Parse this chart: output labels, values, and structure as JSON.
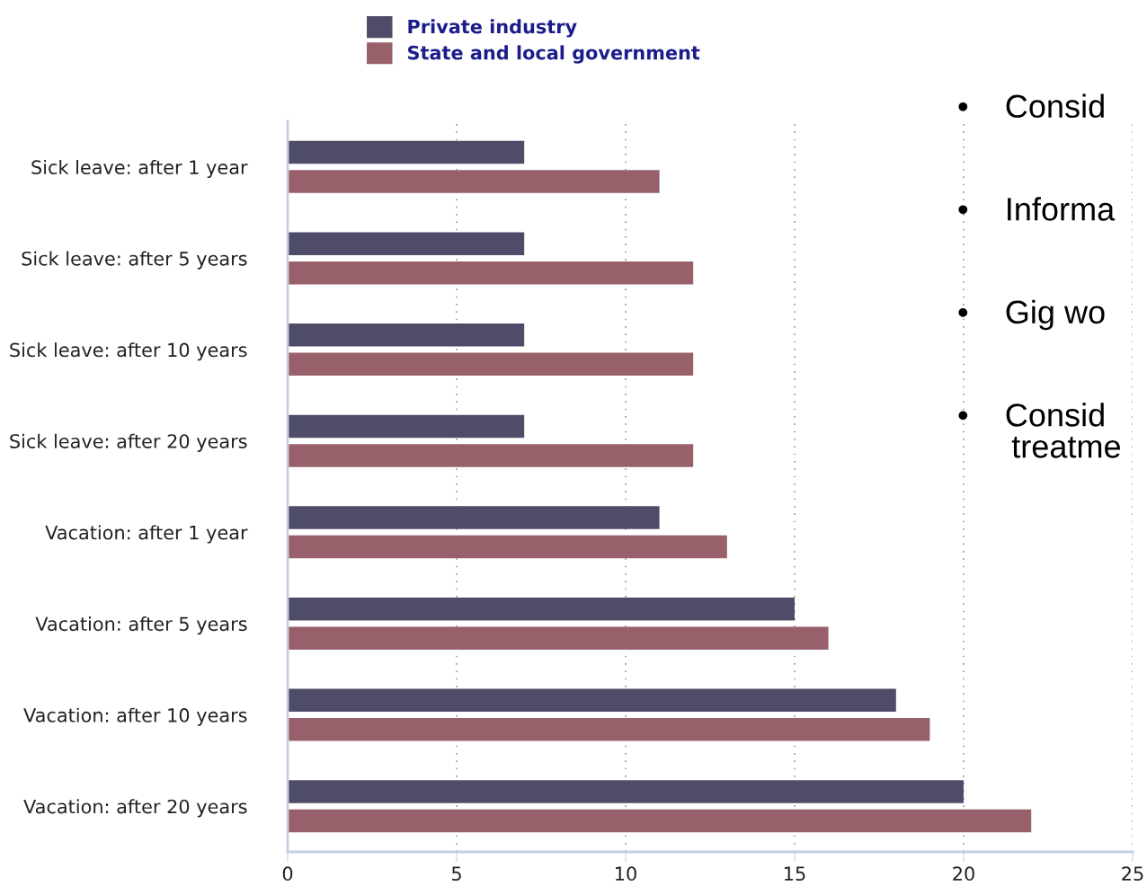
{
  "chart_data": {
    "type": "bar",
    "orientation": "horizontal",
    "categories": [
      "Sick leave: after 1 year",
      "Sick leave: after 5 years",
      "Sick leave: after 10 years",
      "Sick leave: after 20 years",
      "Vacation: after 1 year",
      "Vacation: after 5 years",
      "Vacation: after 10 years",
      "Vacation: after 20 years"
    ],
    "series": [
      {
        "name": "Private industry",
        "color": "#4f4c69",
        "values": [
          7,
          7,
          7,
          7,
          11,
          15,
          18,
          20
        ]
      },
      {
        "name": "State and local government",
        "color": "#98606b",
        "values": [
          11,
          12,
          12,
          12,
          13,
          16,
          19,
          22
        ]
      }
    ],
    "xlim": [
      0,
      25
    ],
    "xticks": [
      0,
      5,
      10,
      15,
      20,
      25
    ],
    "grid": "x",
    "legend": "top",
    "annotations": [
      "•    Consid",
      "•    Informa",
      "•    Gig wo",
      "•    Consid\n      treatme"
    ]
  }
}
